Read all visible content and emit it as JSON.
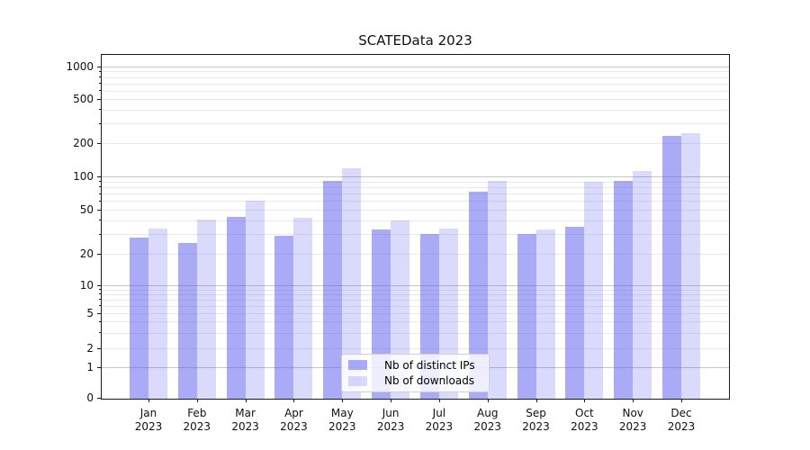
{
  "chart_data": {
    "type": "bar",
    "title": "SCATEData 2023",
    "xlabel": "",
    "ylabel": "",
    "yscale": "symlog",
    "grid": "both",
    "ylim": [
      0,
      1200
    ],
    "yticks": [
      0,
      1,
      2,
      5,
      10,
      20,
      50,
      100,
      200,
      500,
      1000
    ],
    "categories": [
      "Jan\n2023",
      "Feb\n2023",
      "Mar\n2023",
      "Apr\n2023",
      "May\n2023",
      "Jun\n2023",
      "Jul\n2023",
      "Aug\n2023",
      "Sep\n2023",
      "Oct\n2023",
      "Nov\n2023",
      "Dec\n2023"
    ],
    "series": [
      {
        "name": "Nb of distinct IPs",
        "color_hex": "#5555f0",
        "alpha": 0.5,
        "values": [
          28,
          25,
          43,
          29,
          91,
          33,
          30,
          73,
          30,
          35,
          91,
          232
        ]
      },
      {
        "name": "Nb of downloads",
        "color_hex": "#5555f0",
        "alpha": 0.22,
        "values": [
          34,
          41,
          60,
          42,
          118,
          40,
          34,
          91,
          33,
          89,
          112,
          246
        ]
      }
    ],
    "legend": {
      "position": "lower center",
      "items": [
        "Nb of distinct IPs",
        "Nb of downloads"
      ]
    },
    "colors": {
      "bar_dark_on_white": "#aaaaf7",
      "bar_light_on_white": "#dadafb",
      "grid_major": "#c6c6c6",
      "grid_minor": "#e9e9e9",
      "axis": "#1a1a1a"
    }
  }
}
